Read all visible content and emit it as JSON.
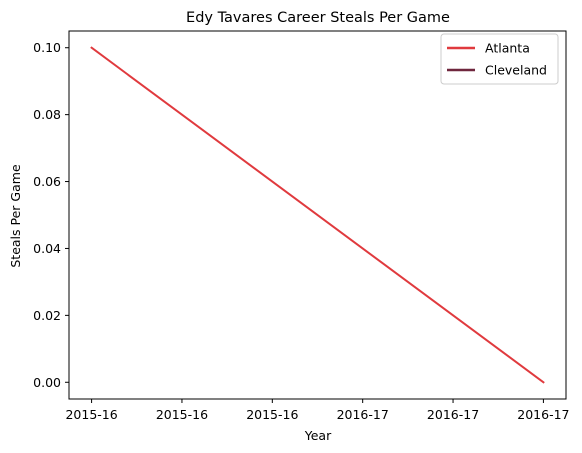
{
  "chart_data": {
    "type": "line",
    "title": "Edy Tavares Career Steals Per Game",
    "xlabel": "Year",
    "ylabel": "Steals Per Game",
    "x_tick_labels": [
      "2015-16",
      "2015-16",
      "2015-16",
      "2016-17",
      "2016-17",
      "2016-17"
    ],
    "ylim": [
      -0.005,
      0.105
    ],
    "y_ticks": [
      0.0,
      0.02,
      0.04,
      0.06,
      0.08,
      0.1
    ],
    "y_tick_labels": [
      "0.00",
      "0.02",
      "0.04",
      "0.06",
      "0.08",
      "0.10"
    ],
    "grid": false,
    "legend_position": "top-right",
    "series": [
      {
        "name": "Atlanta",
        "color": "#e03a3e",
        "x": [
          0,
          5
        ],
        "values": [
          0.1,
          0.0
        ]
      },
      {
        "name": "Cleveland",
        "color": "#6f263d",
        "x": [],
        "values": []
      }
    ]
  }
}
